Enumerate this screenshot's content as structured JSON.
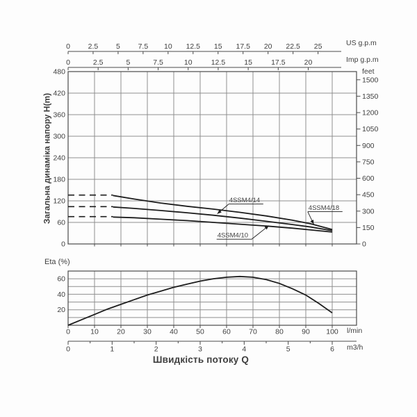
{
  "colors": {
    "background": "#fdfdfd",
    "text": "#3f3f3f",
    "axis": "#4a4a4a",
    "grid": "#8f8f8f",
    "curve": "#1d1d1d"
  },
  "flow_axis": {
    "lmin": {
      "unit": "l/min",
      "ticks": [
        0,
        10,
        20,
        30,
        40,
        50,
        60,
        70,
        80,
        90,
        100
      ]
    },
    "m3h": {
      "unit": "m3/h",
      "ticks": [
        0,
        1,
        2,
        3,
        4,
        5,
        6
      ],
      "minor_step": 0.5
    },
    "title": "Швидкість потоку Q"
  },
  "chart_data": [
    {
      "id": "head-curves-chart",
      "type": "line",
      "ylabel": "Загальна динаміка напору H(m)",
      "ylabel_right": "feet",
      "xlabel_top": [
        "US g.p.m",
        "Imp g.p.m"
      ],
      "ylim_m": [
        0,
        480
      ],
      "yticks_m": [
        0,
        60,
        120,
        180,
        240,
        300,
        360,
        420,
        480
      ],
      "yticks_feet": [
        0,
        150,
        300,
        450,
        600,
        750,
        900,
        1050,
        1200,
        1350,
        1500
      ],
      "xlim_lmin": [
        0,
        109
      ],
      "xticks_us_gpm": [
        0,
        2.5,
        5,
        7.5,
        10,
        12.5,
        15,
        17.5,
        20,
        22.5,
        25
      ],
      "xticks_imp_gpm": [
        0,
        2.5,
        5,
        7.5,
        10,
        12.5,
        15,
        17.5,
        20
      ],
      "grid": true,
      "series": [
        {
          "name": "4SSM4/18",
          "dashed_lead": {
            "from_lmin": 0,
            "to_lmin": 17,
            "head_m": 136
          },
          "points_lmin_m": [
            [
              17,
              135
            ],
            [
              25,
              125
            ],
            [
              35,
              114
            ],
            [
              45,
              105
            ],
            [
              55,
              97
            ],
            [
              65,
              88
            ],
            [
              75,
              78
            ],
            [
              85,
              66
            ],
            [
              92,
              56
            ],
            [
              100,
              40
            ]
          ]
        },
        {
          "name": "4SSM4/14",
          "dashed_lead": {
            "from_lmin": 0,
            "to_lmin": 17,
            "head_m": 104
          },
          "points_lmin_m": [
            [
              17,
              103
            ],
            [
              25,
              99
            ],
            [
              35,
              93
            ],
            [
              45,
              87
            ],
            [
              55,
              80
            ],
            [
              65,
              72
            ],
            [
              75,
              63
            ],
            [
              85,
              54
            ],
            [
              92,
              47
            ],
            [
              100,
              37
            ]
          ]
        },
        {
          "name": "4SSM4/10",
          "dashed_lead": {
            "from_lmin": 0,
            "to_lmin": 17,
            "head_m": 76
          },
          "points_lmin_m": [
            [
              17,
              75
            ],
            [
              25,
              73
            ],
            [
              35,
              69
            ],
            [
              45,
              65
            ],
            [
              55,
              60
            ],
            [
              65,
              55
            ],
            [
              75,
              50
            ],
            [
              85,
              44
            ],
            [
              92,
              39
            ],
            [
              100,
              33
            ]
          ]
        }
      ],
      "annotations": [
        {
          "text": "4SSM4/14",
          "text_at_lmin_m": [
            61,
            116
          ],
          "leader_from": "left",
          "arrow_to_lmin_m": [
            56.5,
            84
          ]
        },
        {
          "text": "4SSM4/18",
          "text_at_lmin_m": [
            91,
            95
          ],
          "leader_from": "left",
          "arrow_to_lmin_m": [
            93,
            55
          ]
        },
        {
          "text": "4SSM4/10",
          "text_at_lmin_m": [
            56.5,
            18
          ],
          "leader_from": "right",
          "arrow_to_lmin_m": [
            76,
            51
          ]
        }
      ]
    },
    {
      "id": "efficiency-chart",
      "type": "line",
      "ylabel": "Eta (%)",
      "ylim": [
        0,
        70
      ],
      "yticks_labeled": [
        20,
        40,
        60
      ],
      "ygrid_step": 10,
      "points_lmin_pct": [
        [
          0,
          0
        ],
        [
          5,
          7
        ],
        [
          10,
          14
        ],
        [
          15,
          21
        ],
        [
          20,
          27
        ],
        [
          25,
          33
        ],
        [
          30,
          39
        ],
        [
          35,
          44
        ],
        [
          40,
          49
        ],
        [
          45,
          53
        ],
        [
          50,
          57
        ],
        [
          55,
          60
        ],
        [
          60,
          62
        ],
        [
          65,
          63
        ],
        [
          70,
          62
        ],
        [
          75,
          59
        ],
        [
          80,
          54
        ],
        [
          85,
          47
        ],
        [
          90,
          39
        ],
        [
          95,
          28
        ],
        [
          100,
          16
        ]
      ]
    }
  ]
}
